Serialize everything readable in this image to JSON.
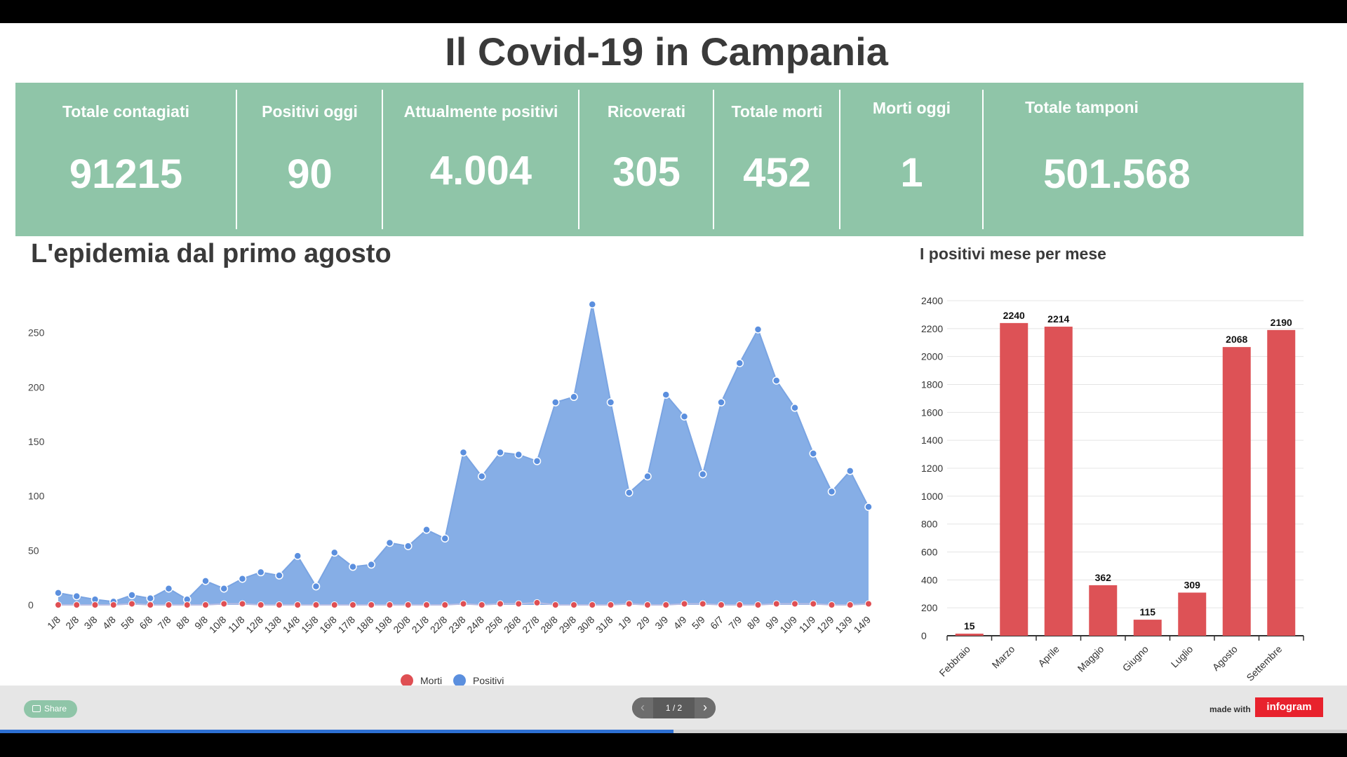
{
  "title": "Il Covid-19 in Campania",
  "colors": {
    "panel": "#8fc5a8",
    "morti": "#df4f53",
    "positivi": "#5b8fde",
    "area": "#86aee6",
    "bars": "#dd5256"
  },
  "stats": [
    {
      "label": "Totale contagiati",
      "value": "91215"
    },
    {
      "label": "Positivi oggi",
      "value": "90"
    },
    {
      "label": "Attualmente positivi",
      "value": "4.004"
    },
    {
      "label": "Ricoverati",
      "value": "305"
    },
    {
      "label": "Totale morti",
      "value": "452"
    },
    {
      "label": "Morti oggi",
      "value": "1"
    },
    {
      "label": "Totale tamponi",
      "value": "501.568"
    }
  ],
  "left_chart_title": "L'epidemia dal primo agosto",
  "right_chart_title": "I positivi mese per mese",
  "chart_data": [
    {
      "type": "area",
      "x": [
        "1/8",
        "2/8",
        "3/8",
        "4/8",
        "5/8",
        "6/8",
        "7/8",
        "8/8",
        "9/8",
        "10/8",
        "11/8",
        "12/8",
        "13/8",
        "14/8",
        "15/8",
        "16/8",
        "17/8",
        "18/8",
        "19/8",
        "20/8",
        "21/8",
        "22/8",
        "23/8",
        "24/8",
        "25/8",
        "26/8",
        "27/8",
        "28/8",
        "29/8",
        "30/8",
        "31/8",
        "1/9",
        "2/9",
        "3/9",
        "4/9",
        "5/9",
        "6/7",
        "7/9",
        "8/9",
        "9/9",
        "10/9",
        "11/9",
        "12/9",
        "13/9",
        "14/9"
      ],
      "series": [
        {
          "name": "Morti",
          "values": [
            0,
            0,
            0,
            0,
            1,
            0,
            0,
            0,
            0,
            1,
            1,
            0,
            0,
            0,
            0,
            0,
            0,
            0,
            0,
            0,
            0,
            0,
            1,
            0,
            1,
            1,
            2,
            0,
            0,
            0,
            0,
            1,
            0,
            0,
            1,
            1,
            0,
            0,
            0,
            1,
            1,
            1,
            0,
            0,
            1
          ]
        },
        {
          "name": "Positivi",
          "values": [
            11,
            8,
            5,
            3,
            9,
            6,
            15,
            5,
            22,
            15,
            24,
            30,
            27,
            45,
            17,
            48,
            35,
            37,
            57,
            54,
            69,
            61,
            140,
            118,
            140,
            138,
            132,
            186,
            191,
            276,
            186,
            103,
            118,
            193,
            173,
            120,
            186,
            222,
            253,
            206,
            181,
            139,
            104,
            123,
            90
          ]
        }
      ],
      "ylim": [
        0,
        280
      ],
      "yticks": [
        0,
        50,
        100,
        150,
        200,
        250
      ],
      "legend": "bottom"
    },
    {
      "type": "bar",
      "categories": [
        "Febbraio",
        "Marzo",
        "Aprile",
        "Maggio",
        "Giugno",
        "Luglio",
        "Agosto",
        "Settembre"
      ],
      "values": [
        15,
        2240,
        2214,
        362,
        115,
        309,
        2068,
        2190
      ],
      "ylim": [
        0,
        2400
      ],
      "yticks": [
        0,
        200,
        400,
        600,
        800,
        1000,
        1200,
        1400,
        1600,
        1800,
        2000,
        2200,
        2400
      ]
    }
  ],
  "footer": {
    "share_label": "Share",
    "pager_label": "1 / 2",
    "pager_prev_icon": "‹",
    "pager_next_icon": "›",
    "made_with": "made with",
    "brand": "infogram",
    "progress": 0.5
  }
}
